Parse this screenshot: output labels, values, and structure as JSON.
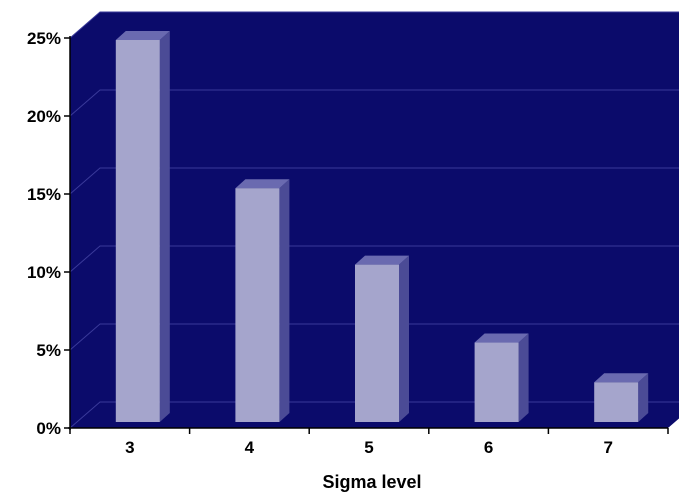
{
  "chart_data": {
    "type": "bar",
    "title": "",
    "xlabel": "Sigma level",
    "ylabel": "",
    "categories": [
      "3",
      "4",
      "5",
      "6",
      "7"
    ],
    "values": [
      25,
      15.3,
      10.3,
      5.2,
      2.6
    ],
    "y_unit": "%",
    "ylim": [
      0,
      25
    ],
    "y_ticks": [
      0,
      5,
      10,
      15,
      20,
      25
    ],
    "y_tick_labels": [
      "0%",
      "5%",
      "10%",
      "15%",
      "20%",
      "25%"
    ],
    "grid": true,
    "legend": "none",
    "style": "3d-columns",
    "colors": {
      "plot_background": "#0b0b6b",
      "bar_front": "#a5a5cc",
      "bar_side": "#4b4b96",
      "bar_top": "#6a6ab0",
      "gridline": "#3a3a9a",
      "axis": "#000000"
    }
  }
}
